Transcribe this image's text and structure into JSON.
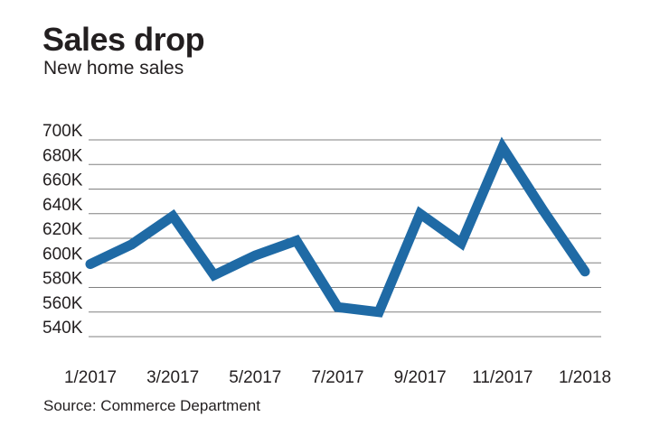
{
  "header": {
    "title": "Sales drop",
    "subtitle": "New home sales"
  },
  "footer": {
    "source": "Source: Commerce Department"
  },
  "colors": {
    "line": "#1f6aa5",
    "grid": "#808080",
    "text": "#231f20"
  },
  "chart_data": {
    "type": "line",
    "title": "Sales drop",
    "subtitle": "New home sales",
    "xlabel": "",
    "ylabel": "",
    "x": [
      "1/2017",
      "2/2017",
      "3/2017",
      "4/2017",
      "5/2017",
      "6/2017",
      "7/2017",
      "8/2017",
      "9/2017",
      "10/2017",
      "11/2017",
      "12/2017",
      "1/2018"
    ],
    "x_tick_labels": [
      "1/2017",
      "3/2017",
      "5/2017",
      "7/2017",
      "9/2017",
      "11/2017",
      "1/2018"
    ],
    "series": [
      {
        "values": [
          599,
          615,
          638,
          590,
          606,
          618,
          564,
          560,
          640,
          616,
          694,
          642,
          593
        ]
      }
    ],
    "y_ticks": [
      540,
      560,
      580,
      600,
      620,
      640,
      660,
      680,
      700
    ],
    "y_tick_labels": [
      "540K",
      "560K",
      "580K",
      "600K",
      "620K",
      "640K",
      "660K",
      "680K",
      "700K"
    ],
    "unit": "thousands",
    "ylim": [
      540,
      700
    ],
    "grid": "horizontal",
    "legend": "none"
  }
}
